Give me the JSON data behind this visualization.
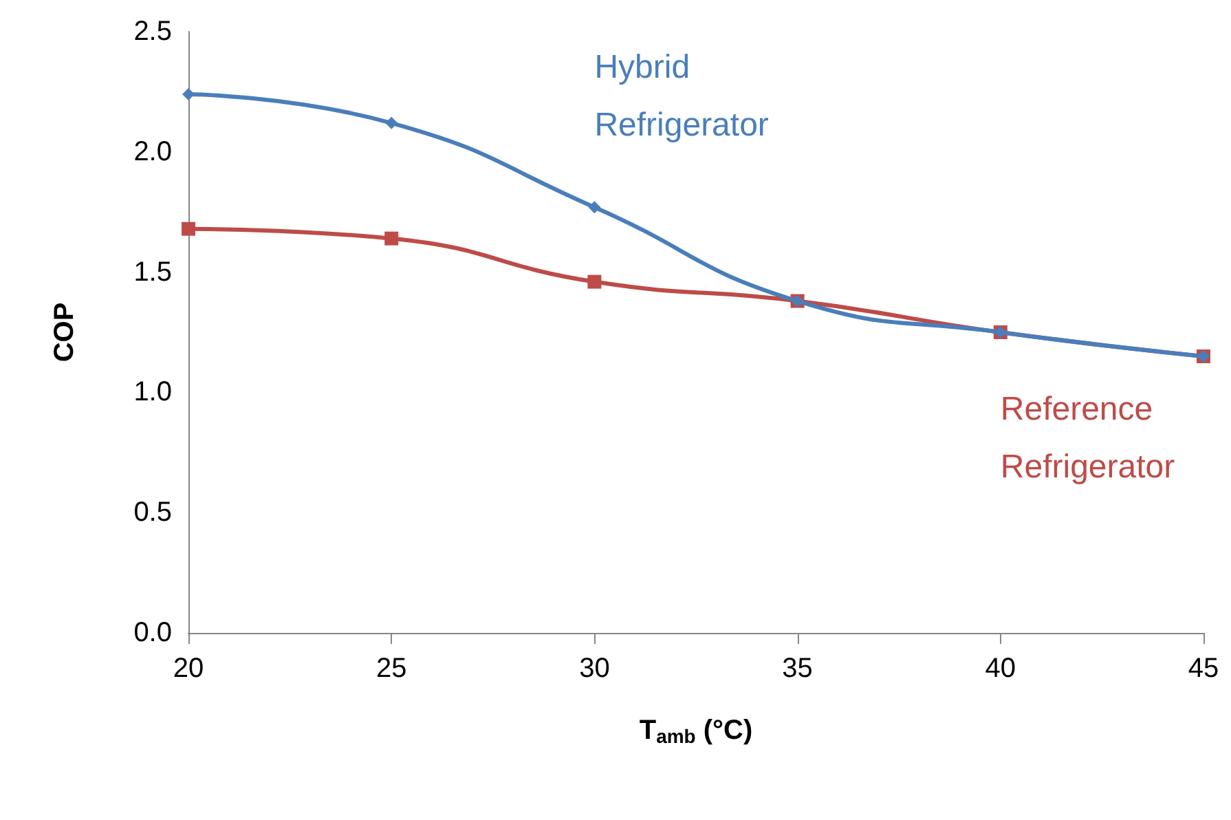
{
  "chart_data": {
    "type": "line",
    "xlabel": "T$_{amb}$ (°C)",
    "ylabel": "COP",
    "categories": [
      "20",
      "25",
      "30",
      "35",
      "40",
      "45"
    ],
    "series": [
      {
        "name": "Hybrid Refrigerator",
        "color": "#4a7ebb",
        "marker": "diamond",
        "values": [
          2.24,
          2.12,
          1.77,
          1.38,
          1.25,
          1.15
        ]
      },
      {
        "name": "Reference Refrigerator",
        "color": "#be4b48",
        "marker": "square",
        "values": [
          1.68,
          1.64,
          1.46,
          1.38,
          1.25,
          1.15
        ]
      }
    ],
    "ylim": [
      0,
      2.5
    ],
    "yticks": [
      {
        "value": 0,
        "label": "0.0"
      },
      0.5,
      {
        "value": 1,
        "label": "1.0"
      },
      1.5,
      {
        "value": 2,
        "label": "2.0"
      },
      2.5
    ],
    "grid": false,
    "legend": false,
    "line_style": "solid"
  }
}
